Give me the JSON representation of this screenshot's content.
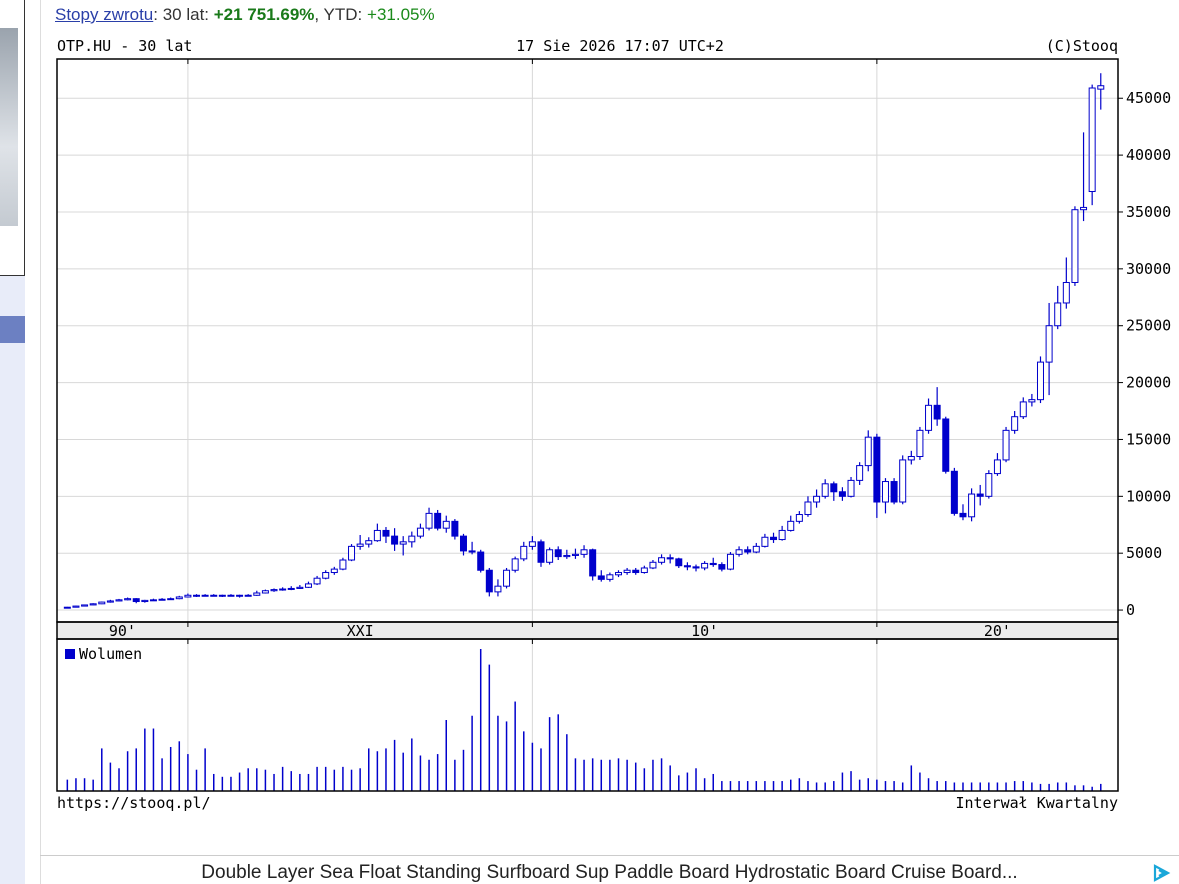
{
  "returns": {
    "label": "Stopy zwrotu",
    "period": ": 30 lat: ",
    "period_value": "+21 751.69%",
    "ytd": ", YTD: ",
    "ytd_value": "+31.05%"
  },
  "ad": {
    "text": "Double Layer Sea Float Standing Surfboard Sup Paddle Board Hydrostatic Board Cruise Board..."
  },
  "chart_data": {
    "type": "candlestick",
    "title": "OTP.HU - 30 lat",
    "timestamp": "17 Sie 2026 17:07 UTC+2",
    "copyright": "(C)Stooq",
    "source": "https://stooq.pl/",
    "interval": "Interwał Kwartalny",
    "color": "#0000cc",
    "grid": true,
    "xlim": [
      1996.2,
      2027.0
    ],
    "xticks": [
      2000,
      2010,
      2020
    ],
    "period_labels": [
      "90'",
      "XXI",
      "10'",
      "20'"
    ],
    "ylim": [
      -1050,
      48450
    ],
    "yticks": [
      0,
      5000,
      10000,
      15000,
      20000,
      25000,
      30000,
      35000,
      40000,
      45000
    ],
    "x": [
      1996.5,
      1996.75,
      1997,
      1997.25,
      1997.5,
      1997.75,
      1998,
      1998.25,
      1998.5,
      1998.75,
      1999,
      1999.25,
      1999.5,
      1999.75,
      2000,
      2000.25,
      2000.5,
      2000.75,
      2001,
      2001.25,
      2001.5,
      2001.75,
      2002,
      2002.25,
      2002.5,
      2002.75,
      2003,
      2003.25,
      2003.5,
      2003.75,
      2004,
      2004.25,
      2004.5,
      2004.75,
      2005,
      2005.25,
      2005.5,
      2005.75,
      2006,
      2006.25,
      2006.5,
      2006.75,
      2007,
      2007.25,
      2007.5,
      2007.75,
      2008,
      2008.25,
      2008.5,
      2008.75,
      2009,
      2009.25,
      2009.5,
      2009.75,
      2010,
      2010.25,
      2010.5,
      2010.75,
      2011,
      2011.25,
      2011.5,
      2011.75,
      2012,
      2012.25,
      2012.5,
      2012.75,
      2013,
      2013.25,
      2013.5,
      2013.75,
      2014,
      2014.25,
      2014.5,
      2014.75,
      2015,
      2015.25,
      2015.5,
      2015.75,
      2016,
      2016.25,
      2016.5,
      2016.75,
      2017,
      2017.25,
      2017.5,
      2017.75,
      2018,
      2018.25,
      2018.5,
      2018.75,
      2019,
      2019.25,
      2019.5,
      2019.75,
      2020,
      2020.25,
      2020.5,
      2020.75,
      2021,
      2021.25,
      2021.5,
      2021.75,
      2022,
      2022.25,
      2022.5,
      2022.75,
      2023,
      2023.25,
      2023.5,
      2023.75,
      2024,
      2024.25,
      2024.5,
      2024.75,
      2025,
      2025.25,
      2025.5,
      2025.75,
      2026,
      2026.25,
      2026.5
    ],
    "open": [
      200,
      250,
      350,
      450,
      550,
      700,
      800,
      900,
      1000,
      750,
      850,
      900,
      950,
      1000,
      1150,
      1300,
      1250,
      1300,
      1300,
      1250,
      1300,
      1250,
      1300,
      1500,
      1700,
      1800,
      1850,
      1900,
      2000,
      2300,
      2800,
      3300,
      3600,
      4400,
      5600,
      5800,
      6100,
      7000,
      6500,
      5800,
      6000,
      6500,
      7200,
      8500,
      7200,
      7800,
      6500,
      5200,
      5100,
      3500,
      1600,
      2100,
      3500,
      4500,
      5600,
      6000,
      4200,
      5300,
      4700,
      4800,
      4900,
      5300,
      3000,
      2700,
      3100,
      3300,
      3500,
      3300,
      3700,
      4200,
      4600,
      4500,
      3900,
      3800,
      3700,
      4100,
      4000,
      3600,
      4900,
      5300,
      5100,
      5600,
      6400,
      6200,
      7000,
      7800,
      8400,
      9500,
      10000,
      11100,
      10400,
      10000,
      11400,
      12700,
      15200,
      9500,
      11300,
      9500,
      13200,
      13500,
      15800,
      18000,
      16800,
      12200,
      8500,
      8200,
      10200,
      10000,
      12000,
      13200,
      15800,
      17000,
      18300,
      18500,
      21800,
      25000,
      27000,
      28800,
      35200,
      36800,
      45800
    ],
    "high": [
      280,
      380,
      480,
      600,
      750,
      900,
      980,
      1100,
      1050,
      900,
      1000,
      1050,
      1100,
      1250,
      1450,
      1400,
      1400,
      1400,
      1350,
      1400,
      1350,
      1400,
      1700,
      1800,
      1900,
      2000,
      2100,
      2200,
      2500,
      3000,
      3500,
      3800,
      4600,
      5800,
      6600,
      6400,
      7600,
      7300,
      7200,
      6500,
      6900,
      7600,
      9000,
      8800,
      8300,
      8000,
      6700,
      6000,
      5300,
      3700,
      2700,
      3700,
      4700,
      6000,
      6500,
      6200,
      5500,
      5600,
      5300,
      5400,
      5700,
      5400,
      3500,
      3300,
      3500,
      3700,
      3700,
      3900,
      4400,
      4900,
      4900,
      4600,
      4200,
      4000,
      4300,
      4600,
      4200,
      5100,
      5600,
      5600,
      5900,
      6700,
      6800,
      7400,
      8300,
      8700,
      10000,
      10600,
      11500,
      11300,
      10800,
      11700,
      13000,
      15800,
      15500,
      11600,
      11600,
      13600,
      14000,
      16100,
      18600,
      19600,
      17000,
      12500,
      9300,
      10700,
      11000,
      12300,
      13800,
      16100,
      17500,
      18700,
      19000,
      22300,
      27000,
      28500,
      31000,
      35500,
      42000,
      46200,
      47200
    ],
    "low": [
      180,
      240,
      330,
      430,
      520,
      650,
      760,
      850,
      600,
      650,
      800,
      850,
      900,
      950,
      1100,
      1150,
      1200,
      1200,
      1150,
      1200,
      1100,
      1200,
      1250,
      1450,
      1600,
      1700,
      1750,
      1850,
      1950,
      2200,
      2700,
      3100,
      3500,
      4300,
      5300,
      5500,
      6000,
      5900,
      5200,
      4800,
      5500,
      6300,
      7000,
      7000,
      6800,
      6200,
      4800,
      4900,
      3300,
      1200,
      1200,
      1900,
      3300,
      4300,
      5300,
      3800,
      4000,
      4400,
      4500,
      4500,
      4600,
      2600,
      2500,
      2500,
      2900,
      3100,
      3100,
      3200,
      3600,
      4000,
      4100,
      3700,
      3500,
      3400,
      3500,
      3800,
      3400,
      3500,
      4700,
      4900,
      5000,
      5500,
      5900,
      6100,
      6900,
      7600,
      8200,
      9000,
      9800,
      9600,
      9600,
      9900,
      11000,
      12200,
      8100,
      8500,
      9300,
      9300,
      12800,
      13200,
      15500,
      16200,
      12000,
      8300,
      7900,
      7800,
      9200,
      9800,
      11800,
      13000,
      15500,
      16800,
      17900,
      18200,
      18900,
      24700,
      26500,
      28500,
      34200,
      35600,
      44000
    ],
    "close": [
      250,
      350,
      450,
      550,
      700,
      800,
      900,
      1000,
      750,
      850,
      900,
      950,
      1000,
      1150,
      1300,
      1250,
      1300,
      1300,
      1250,
      1300,
      1250,
      1300,
      1500,
      1700,
      1800,
      1850,
      1900,
      2000,
      2300,
      2800,
      3300,
      3600,
      4400,
      5600,
      5800,
      6100,
      7000,
      6500,
      5800,
      6000,
      6500,
      7200,
      8500,
      7200,
      7800,
      6500,
      5200,
      5100,
      3500,
      1600,
      2100,
      3500,
      4500,
      5600,
      6000,
      4200,
      5300,
      4700,
      4800,
      4900,
      5300,
      3000,
      2700,
      3100,
      3300,
      3500,
      3300,
      3700,
      4200,
      4600,
      4500,
      3900,
      3800,
      3700,
      4100,
      4000,
      3600,
      4900,
      5300,
      5100,
      5600,
      6400,
      6200,
      7000,
      7800,
      8400,
      9500,
      10000,
      11100,
      10400,
      10000,
      11400,
      12700,
      15200,
      9500,
      11300,
      9500,
      13200,
      13500,
      15800,
      18000,
      16800,
      12200,
      8500,
      8200,
      10200,
      10000,
      12000,
      13200,
      15800,
      17000,
      18300,
      18500,
      21800,
      25000,
      27000,
      28800,
      35200,
      35400,
      45900,
      46100
    ],
    "volume": {
      "name": "Wolumen",
      "ylim": [
        0,
        100
      ],
      "values": [
        8,
        9,
        9,
        8,
        30,
        20,
        16,
        28,
        30,
        44,
        44,
        23,
        31,
        35,
        26,
        15,
        30,
        12,
        10,
        10,
        13,
        16,
        16,
        15,
        12,
        17,
        14,
        12,
        12,
        17,
        17,
        15,
        17,
        15,
        16,
        30,
        28,
        30,
        36,
        27,
        37,
        25,
        22,
        26,
        50,
        22,
        29,
        53,
        100,
        89,
        53,
        49,
        63,
        42,
        34,
        30,
        52,
        54,
        40,
        23,
        22,
        23,
        22,
        22,
        23,
        22,
        20,
        16,
        22,
        23,
        18,
        11,
        13,
        16,
        9,
        12,
        7,
        7,
        7,
        7,
        7,
        7,
        7,
        7,
        8,
        9,
        7,
        6,
        6,
        7,
        13,
        14,
        8,
        9,
        8,
        7,
        7,
        6,
        18,
        13,
        9,
        7,
        7,
        6,
        6,
        6,
        6,
        6,
        6,
        6,
        7,
        7,
        6,
        5,
        5,
        6,
        6,
        4,
        4,
        3,
        5
      ]
    }
  }
}
